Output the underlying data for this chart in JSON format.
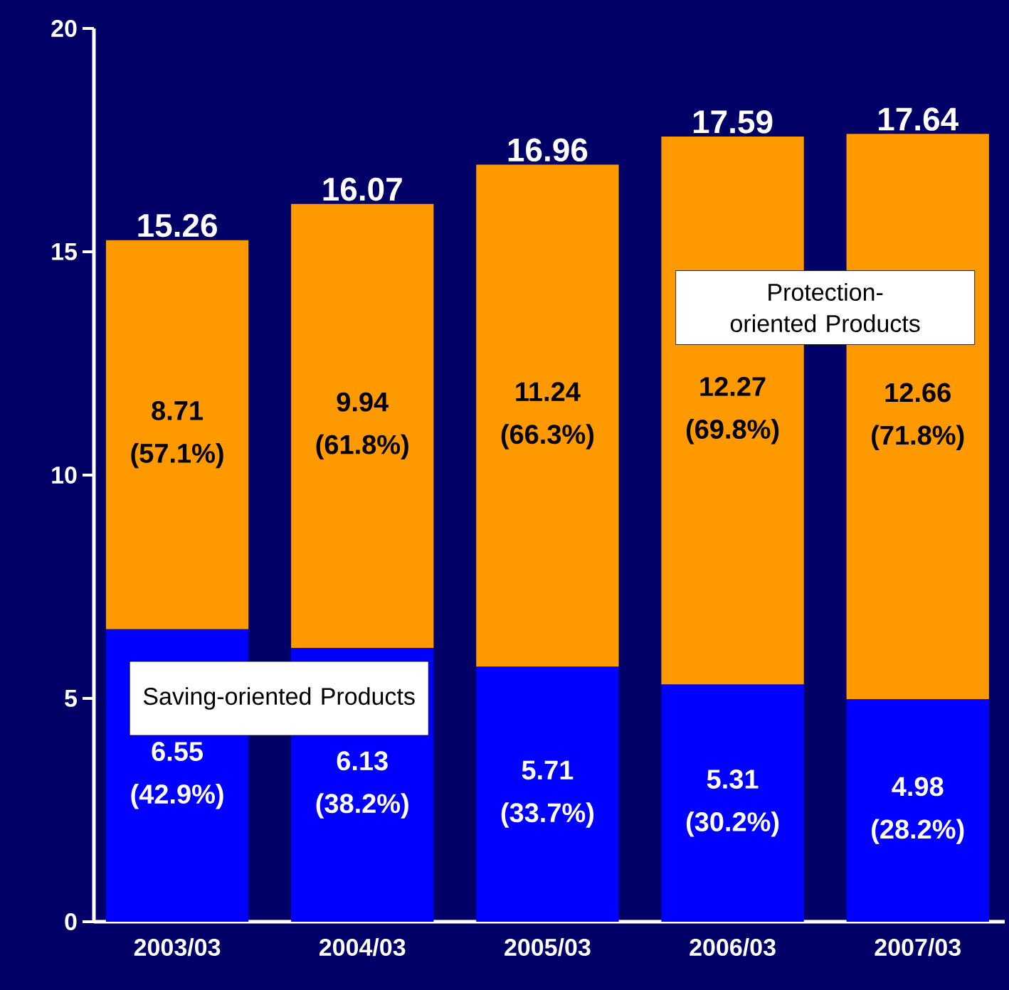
{
  "chart_data": {
    "type": "bar",
    "stacked": true,
    "categories": [
      "2003/03",
      "2004/03",
      "2005/03",
      "2006/03",
      "2007/03"
    ],
    "series": [
      {
        "name": "Saving-oriented Products",
        "color": "#0000ff",
        "values": [
          6.55,
          6.13,
          5.71,
          5.31,
          4.98
        ],
        "value_labels": [
          "6.55 (42.9%)",
          "6.13 (38.2%)",
          "5.71 (33.7%)",
          "5.31 (30.2%)",
          "4.98 (28.2%)"
        ]
      },
      {
        "name": "Protection-oriented Products",
        "color": "#ff9900",
        "values": [
          8.71,
          9.94,
          11.24,
          12.27,
          12.66
        ],
        "value_labels": [
          "8.71 (57.1%)",
          "9.94 (61.8%)",
          "11.24 (66.3%)",
          "12.27 (69.8%)",
          "12.66 (71.8%)"
        ]
      }
    ],
    "totals": [
      "15.26",
      "16.07",
      "16.96",
      "17.59",
      "17.64"
    ],
    "ylim": [
      0,
      20
    ],
    "yticks": [
      0,
      5,
      10,
      15,
      20
    ]
  }
}
